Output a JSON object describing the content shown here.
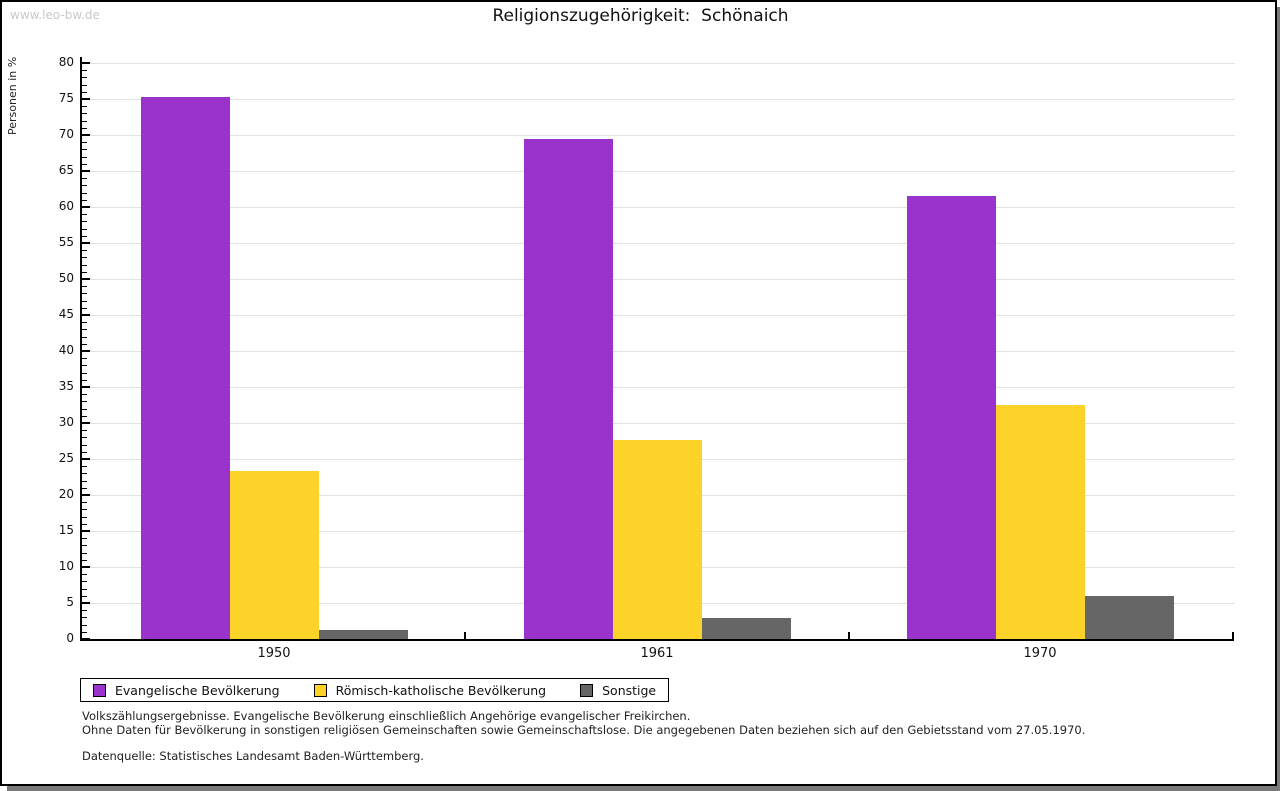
{
  "watermark": "www.leo-bw.de",
  "header": {
    "title": "Religionszugehörigkeit:  Schönaich"
  },
  "footnotes": {
    "line1": "Volkszählungsergebnisse. Evangelische Bevölkerung einschließlich Angehörige evangelischer Freikirchen.",
    "line2": "Ohne Daten für Bevölkerung in sonstigen religiösen Gemeinschaften sowie Gemeinschaftslose. Die angegebenen Daten beziehen sich auf den Gebietsstand vom 27.05.1970.",
    "source": "Datenquelle: Statistisches Landesamt Baden-Württemberg."
  },
  "chart_data": {
    "type": "bar",
    "title": "Religionszugehörigkeit: Schönaich",
    "ylabel": "Personen in %",
    "categories": [
      "1950",
      "1961",
      "1970"
    ],
    "series": [
      {
        "name": "Evangelische Bevölkerung",
        "color": "#9933CC",
        "values": [
          75.3,
          69.4,
          61.5
        ]
      },
      {
        "name": "Römisch-katholische Bevölkerung",
        "color": "#FDD32A",
        "values": [
          23.3,
          27.6,
          32.5
        ]
      },
      {
        "name": "Sonstige",
        "color": "#666666",
        "values": [
          1.3,
          2.9,
          6.0
        ]
      }
    ],
    "ylim": [
      0,
      80
    ],
    "y_major_step": 5,
    "y_minor_step": 1,
    "grid": true,
    "legend_position": "bottom",
    "gridline_color": "#e2e2e2"
  }
}
